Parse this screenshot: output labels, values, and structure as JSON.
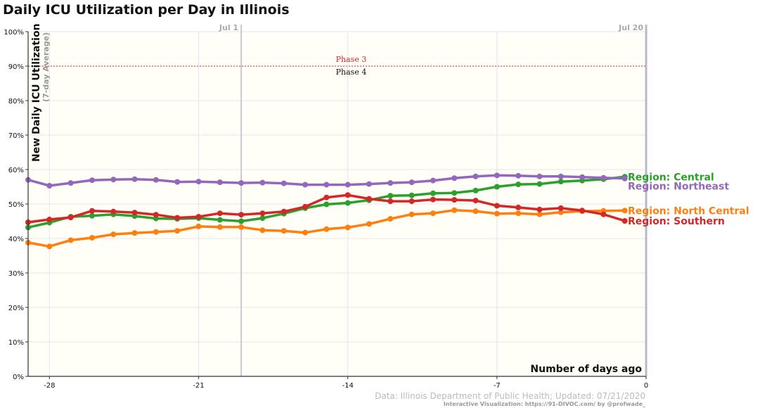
{
  "chart_data": {
    "type": "line",
    "title": "Daily ICU Utilization per Day in Illinois",
    "ylabel": "New Daily ICU Utilization",
    "ylabel_sub": "(7-day Average)",
    "xlabel": "Number of days ago",
    "ylim": [
      0,
      100
    ],
    "y_ticks": [
      "0%",
      "10%",
      "20%",
      "30%",
      "40%",
      "50%",
      "60%",
      "70%",
      "80%",
      "90%",
      "100%"
    ],
    "xlim": [
      -29,
      0
    ],
    "x_ticks": [
      -28,
      -21,
      -14,
      -7,
      0
    ],
    "grid": true,
    "x": [
      -29,
      -28,
      -27,
      -26,
      -25,
      -24,
      -23,
      -22,
      -21,
      -20,
      -19,
      -18,
      -17,
      -16,
      -15,
      -14,
      -13,
      -12,
      -11,
      -10,
      -9,
      -8,
      -7,
      -6,
      -5,
      -4,
      -3,
      -2,
      -1,
      0
    ],
    "series": [
      {
        "name": "Region: Central",
        "color": "#2ca02c",
        "values": [
          43.2,
          44.6,
          46.3,
          46.6,
          47.0,
          46.5,
          45.8,
          45.7,
          45.9,
          45.4,
          45.0,
          45.9,
          47.2,
          48.8,
          49.9,
          50.3,
          51.1,
          52.4,
          52.5,
          53.1,
          53.2,
          53.9,
          55.0,
          55.7,
          55.8,
          56.5,
          56.8,
          57.2,
          57.9,
          null
        ]
      },
      {
        "name": "Region: Northeast",
        "color": "#9467bd",
        "values": [
          57.0,
          55.3,
          56.1,
          56.9,
          57.1,
          57.2,
          57.0,
          56.4,
          56.5,
          56.3,
          56.1,
          56.2,
          56.0,
          55.6,
          55.6,
          55.6,
          55.8,
          56.1,
          56.3,
          56.8,
          57.5,
          58.0,
          58.3,
          58.2,
          58.0,
          58.0,
          57.8,
          57.6,
          57.4,
          null
        ]
      },
      {
        "name": "Region: North Central",
        "color": "#ff7f0e",
        "values": [
          38.8,
          37.7,
          39.5,
          40.2,
          41.2,
          41.6,
          41.9,
          42.2,
          43.5,
          43.3,
          43.3,
          42.4,
          42.2,
          41.7,
          42.7,
          43.2,
          44.2,
          45.7,
          47.0,
          47.3,
          48.2,
          47.9,
          47.2,
          47.3,
          47.0,
          47.6,
          47.9,
          48.0,
          48.1,
          null
        ]
      },
      {
        "name": "Region: Southern",
        "color": "#d62728",
        "values": [
          44.7,
          45.5,
          46.1,
          48.0,
          47.8,
          47.5,
          46.9,
          46.0,
          46.3,
          47.3,
          46.9,
          47.3,
          47.8,
          49.2,
          51.9,
          52.6,
          51.5,
          50.8,
          50.8,
          51.3,
          51.2,
          51.0,
          49.5,
          49.0,
          48.4,
          48.8,
          48.1,
          47.0,
          45.1,
          null
        ]
      }
    ],
    "vertical_markers": [
      {
        "x": -19,
        "label": "Jul 1"
      },
      {
        "x": 0,
        "label": "Jul 20"
      }
    ],
    "horizontal_markers": [
      {
        "y": 90,
        "label_above": "Phase 3",
        "label_below": "Phase 4",
        "color": "#d62728"
      }
    ],
    "source": "Data: Illinois Department of Public Health; Updated: 07/21/2020",
    "credit": "Interactive Visualization: https://91-DIVOC.com/ by @profwade_"
  }
}
